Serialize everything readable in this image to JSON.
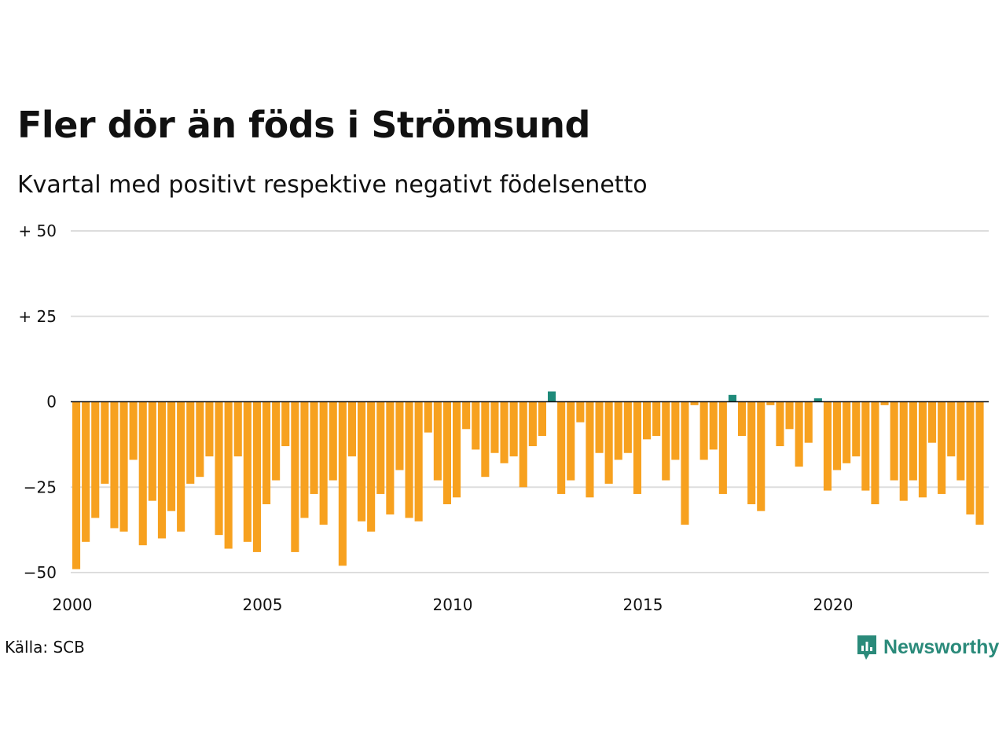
{
  "title": "Fler dör än föds i Strömsund",
  "subtitle": "Kvartal med positivt respektive negativt födelsenetto",
  "source": "Källa: SCB",
  "logo_text": "Newsworthy",
  "colors": {
    "negative": "#f7a11f",
    "positive": "#1e8a7a",
    "grid": "#dddddd",
    "zero": "#111111"
  },
  "chart_data": {
    "type": "bar",
    "title": "Fler dör än föds i Strömsund",
    "subtitle": "Kvartal med positivt respektive negativt födelsenetto",
    "xlabel": "",
    "ylabel": "",
    "ylim": [
      -50,
      50
    ],
    "xlim": [
      2000,
      2024
    ],
    "y_ticks": [
      50,
      25,
      0,
      -25,
      -50
    ],
    "y_tick_labels": [
      "+ 50",
      "+ 25",
      "0",
      "−25",
      "−50"
    ],
    "x_ticks": [
      2000,
      2005,
      2010,
      2015,
      2020
    ],
    "x_tick_labels": [
      "2000",
      "2005",
      "2010",
      "2015",
      "2020"
    ],
    "grid": true,
    "x_start": "2000 Q1",
    "frequency": "quarterly",
    "values": [
      -49,
      -41,
      -34,
      -24,
      -37,
      -38,
      -17,
      -42,
      -29,
      -40,
      -32,
      -38,
      -24,
      -22,
      -16,
      -39,
      -43,
      -16,
      -41,
      -44,
      -30,
      -23,
      -13,
      -44,
      -34,
      -27,
      -36,
      -23,
      -48,
      -16,
      -35,
      -38,
      -27,
      -33,
      -20,
      -34,
      -35,
      -9,
      -23,
      -30,
      -28,
      -8,
      -14,
      -22,
      -15,
      -18,
      -16,
      -25,
      -13,
      -10,
      3,
      -27,
      -23,
      -6,
      -28,
      -15,
      -24,
      -17,
      -15,
      -27,
      -11,
      -10,
      -23,
      -17,
      -36,
      -1,
      -17,
      -14,
      -27,
      2,
      -10,
      -30,
      -32,
      -1,
      -13,
      -8,
      -19,
      -12,
      1,
      -26,
      -20,
      -18,
      -16,
      -26,
      -30,
      -1,
      -23,
      -29,
      -23,
      -28,
      -12,
      -27,
      -16,
      -23,
      -33,
      -36
    ]
  }
}
